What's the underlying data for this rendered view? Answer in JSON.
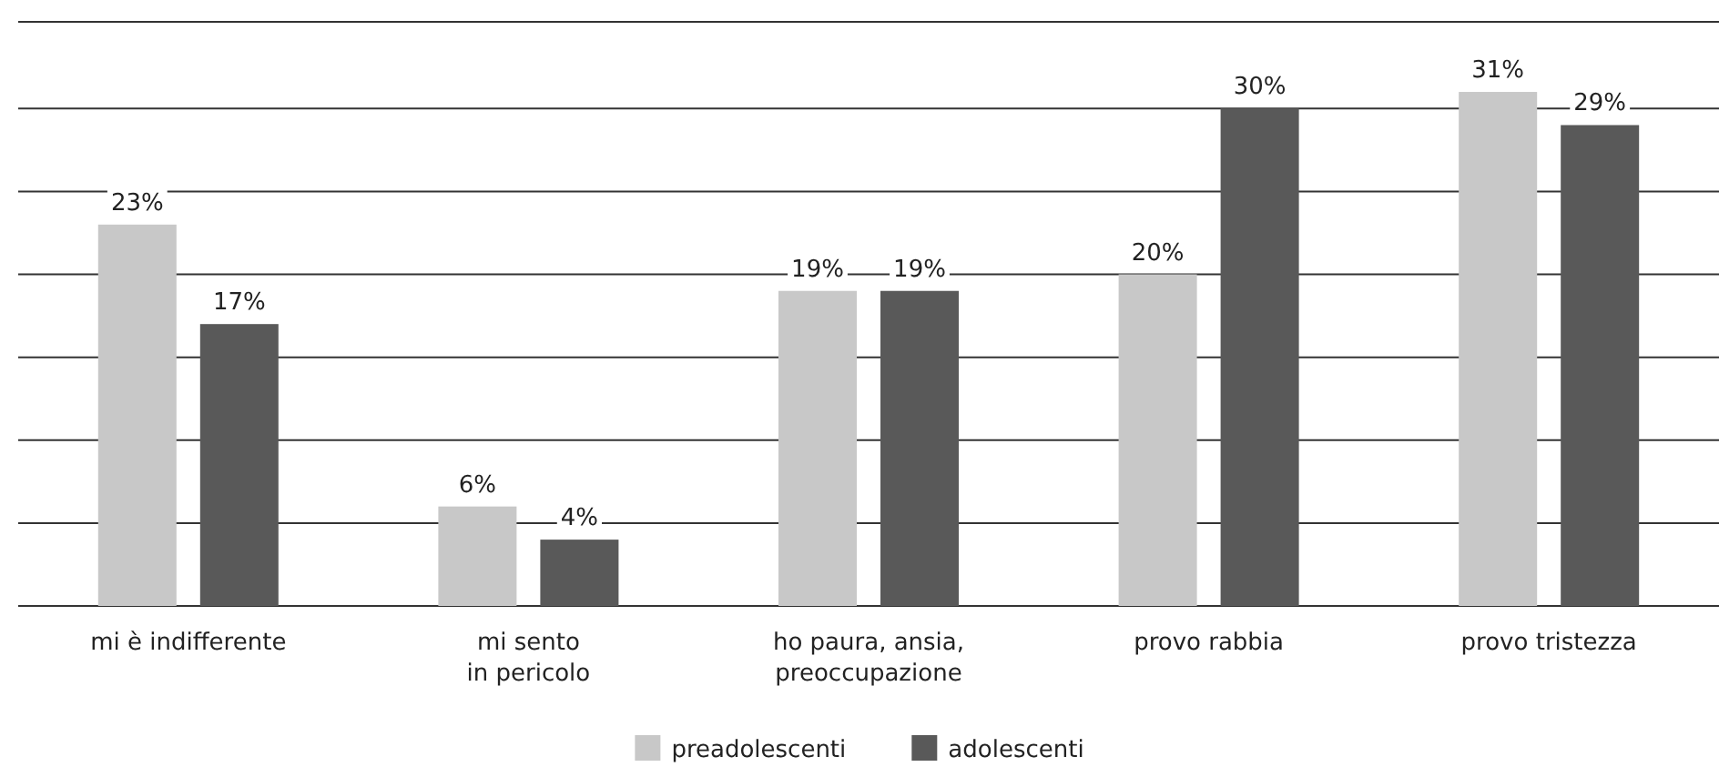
{
  "chart_data": {
    "type": "bar",
    "categories": [
      "mi è indifferente",
      "mi sento\nin pericolo",
      "ho paura, ansia,\npreoccupazione",
      "provo rabbia",
      "provo tristezza"
    ],
    "series": [
      {
        "name": "preadolescenti",
        "color": "#c8c8c8",
        "values": [
          23,
          6,
          19,
          20,
          31
        ],
        "value_labels": [
          "23%",
          "6%",
          "19%",
          "20%",
          "31%"
        ]
      },
      {
        "name": "adolescenti",
        "color": "#595959",
        "values": [
          17,
          4,
          19,
          30,
          29
        ],
        "value_labels": [
          "17%",
          "4%",
          "19%",
          "30%",
          "29%"
        ]
      }
    ],
    "tick_labels": "x",
    "grid": "y",
    "legend": "bottom"
  }
}
